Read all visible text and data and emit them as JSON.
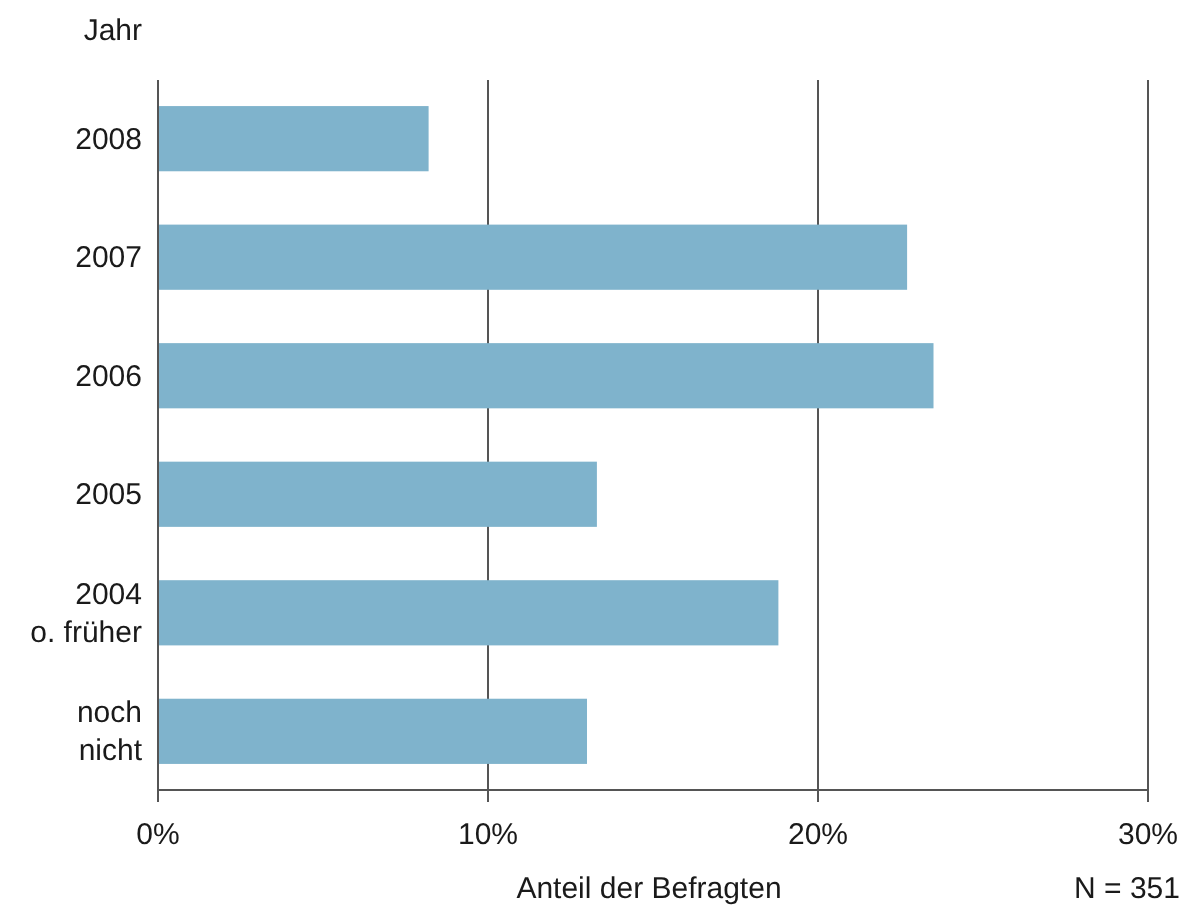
{
  "chart_data": {
    "type": "bar",
    "orientation": "horizontal",
    "ylabel": "Jahr",
    "xlabel": "Anteil der Befragten",
    "categories": [
      "2008",
      "2007",
      "2006",
      "2005",
      "2004\no. früher",
      "noch\nnicht"
    ],
    "values": [
      8.2,
      22.7,
      23.5,
      13.3,
      18.8,
      13.0
    ],
    "color": "#7fb3cc",
    "xlim": [
      0,
      30
    ],
    "xticks": [
      {
        "value": 0,
        "label": "0%"
      },
      {
        "value": 10,
        "label": "10%"
      },
      {
        "value": 20,
        "label": "20%"
      },
      {
        "value": 30,
        "label": "30%"
      }
    ],
    "grid": "x",
    "annotations": [
      "N = 351"
    ]
  }
}
